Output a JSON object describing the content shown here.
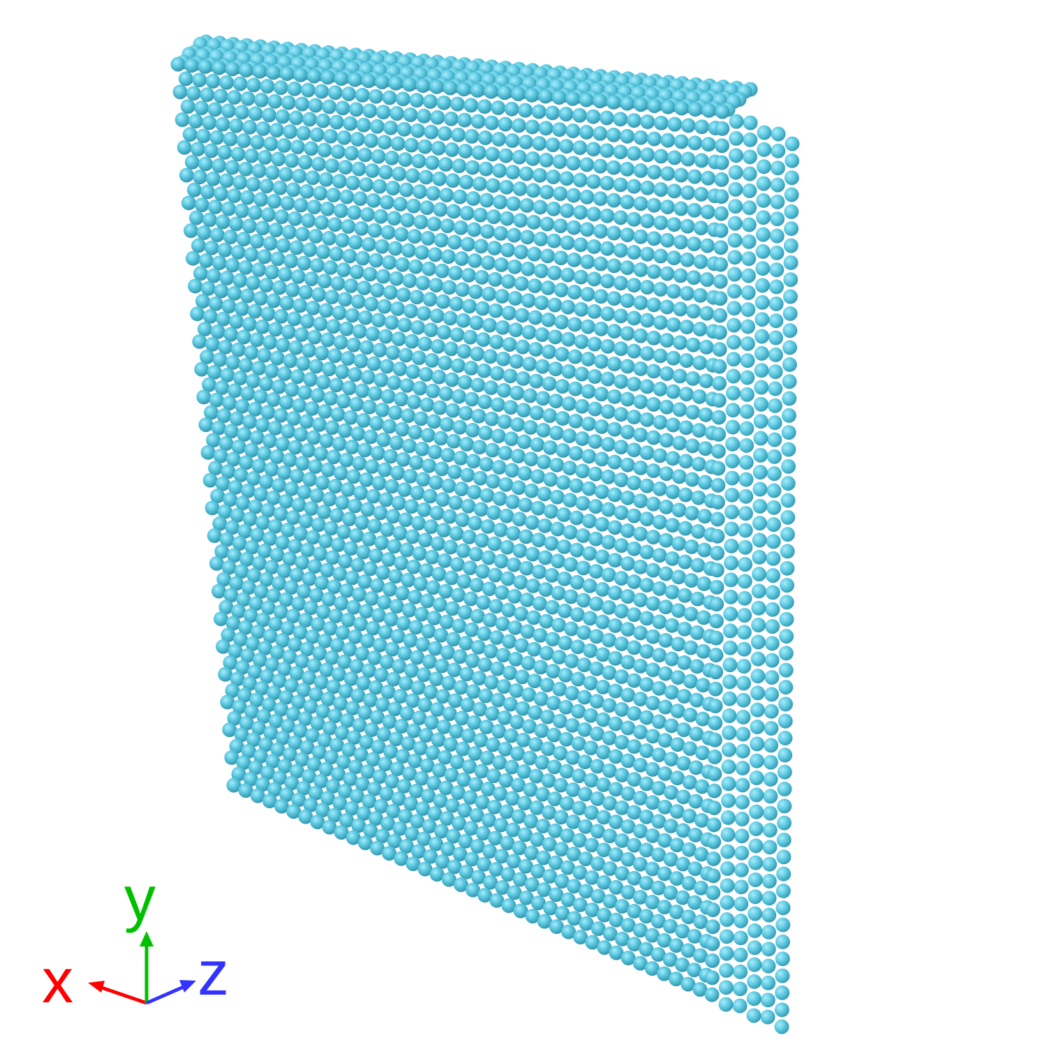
{
  "scene": {
    "structure": "atomic-lattice-slab",
    "atom_color": "#5bc8e0",
    "atom_highlight": "#a8ecfa",
    "atom_shadow": "#2f8fa6",
    "background": "#ffffff"
  },
  "axes": {
    "x": {
      "label": "x",
      "color": "#ff0000"
    },
    "y": {
      "label": "y",
      "color": "#00c000"
    },
    "z": {
      "label": "z",
      "color": "#3333ff"
    }
  }
}
